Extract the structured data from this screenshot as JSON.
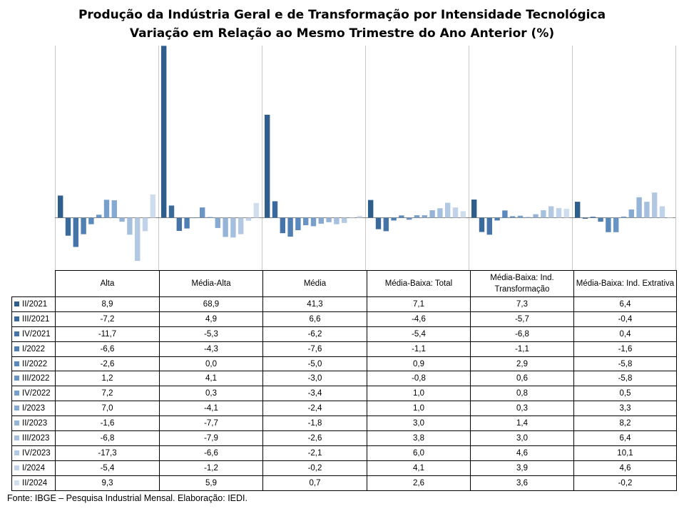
{
  "title": "Produção da Indústria Geral e de Transformação por Intensidade Tecnológica",
  "subtitle": "Variação em Relação ao Mesmo Trimestre do Ano Anterior (%)",
  "footer": "Fonte: IBGE – Pesquisa Industrial Mensal. Elaboração: IEDI.",
  "chart_data": {
    "type": "bar",
    "title": "Produção da Indústria Geral e de Transformação por Intensidade Tecnológica",
    "subtitle": "Variação em Relação ao Mesmo Trimestre do Ano Anterior (%)",
    "categories": [
      "Alta",
      "Média-Alta",
      "Média",
      "Média-Baixa: Total",
      "Média-Baixa: Ind. Transformação",
      "Média-Baixa: Ind. Extrativa"
    ],
    "ylim": [
      -21,
      69
    ],
    "grid": false,
    "legend": "table-left",
    "data_table": true,
    "series": [
      {
        "name": "II/2021",
        "color": "#2f5e8d",
        "values": [
          8.9,
          68.9,
          41.3,
          7.1,
          7.3,
          6.4
        ]
      },
      {
        "name": "III/2021",
        "color": "#3a6a9b",
        "values": [
          -7.2,
          4.9,
          6.6,
          -4.6,
          -5.7,
          -0.4
        ]
      },
      {
        "name": "IV/2021",
        "color": "#4674a8",
        "values": [
          -11.7,
          -5.3,
          -6.2,
          -5.4,
          -6.8,
          0.4
        ]
      },
      {
        "name": "I/2022",
        "color": "#4f7fb3",
        "values": [
          -6.6,
          -4.3,
          -7.6,
          -1.1,
          -1.1,
          -1.6
        ]
      },
      {
        "name": "II/2022",
        "color": "#5a89bd",
        "values": [
          -2.6,
          0.0,
          -5.0,
          0.9,
          2.9,
          -5.8
        ]
      },
      {
        "name": "III/2022",
        "color": "#6994c4",
        "values": [
          1.2,
          4.1,
          -3.0,
          -0.8,
          0.6,
          -5.8
        ]
      },
      {
        "name": "IV/2022",
        "color": "#789fcb",
        "values": [
          7.2,
          0.3,
          -3.4,
          1.0,
          0.8,
          0.5
        ]
      },
      {
        "name": "I/2023",
        "color": "#87aad2",
        "values": [
          7.0,
          -4.1,
          -2.4,
          1.0,
          0.3,
          3.3
        ]
      },
      {
        "name": "II/2023",
        "color": "#96b4d8",
        "values": [
          -1.6,
          -7.7,
          -1.8,
          3.0,
          1.4,
          8.2
        ]
      },
      {
        "name": "III/2023",
        "color": "#a5bfde",
        "values": [
          -6.8,
          -7.9,
          -2.6,
          3.8,
          3.0,
          6.4
        ]
      },
      {
        "name": "IV/2023",
        "color": "#b3c9e3",
        "values": [
          -17.3,
          -6.6,
          -2.1,
          6.0,
          4.6,
          10.1
        ]
      },
      {
        "name": "I/2024",
        "color": "#c1d3e8",
        "values": [
          -5.4,
          -1.2,
          -0.2,
          4.1,
          3.9,
          4.6
        ]
      },
      {
        "name": "II/2024",
        "color": "#cfdded",
        "values": [
          9.3,
          5.9,
          0.7,
          2.6,
          3.6,
          -0.2
        ]
      }
    ]
  }
}
